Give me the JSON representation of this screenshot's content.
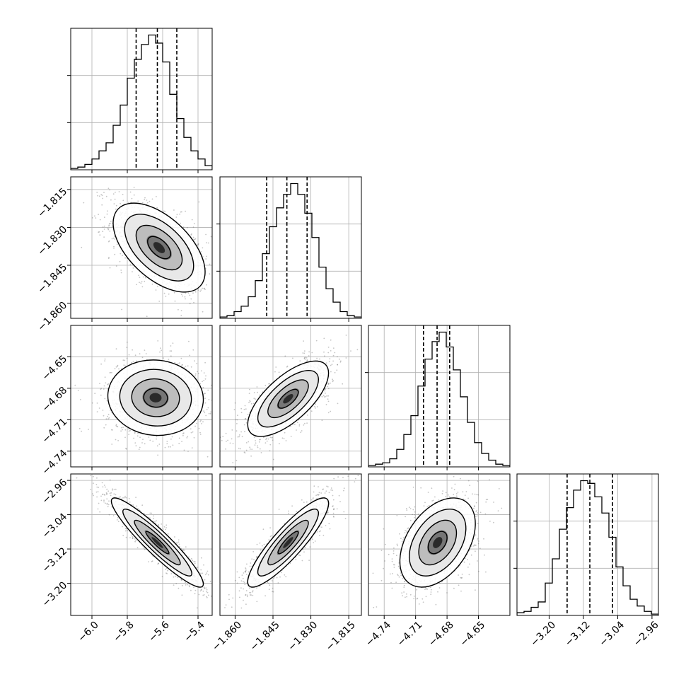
{
  "chart_data": {
    "type": "corner",
    "params": [
      {
        "range": [
          -6.12,
          -5.32
        ],
        "ticks": [
          -6.0,
          -5.8,
          -5.6,
          -5.4
        ],
        "tick_labels": [
          "−6.0",
          "−5.8",
          "−5.6",
          "−5.4"
        ],
        "quantiles": [
          -5.75,
          -5.63,
          -5.52
        ],
        "hist": [
          1,
          2,
          4,
          8,
          14,
          20,
          33,
          48,
          68,
          82,
          93,
          100,
          94,
          80,
          56,
          38,
          24,
          14,
          8,
          3
        ]
      },
      {
        "range": [
          -1.866,
          -1.81
        ],
        "ticks": [
          -1.86,
          -1.845,
          -1.83,
          -1.815
        ],
        "tick_labels": [
          "−1.860",
          "−1.845",
          "−1.830",
          "−1.815"
        ],
        "quantiles": [
          -1.8475,
          -1.8395,
          -1.8315
        ],
        "hist": [
          1,
          2,
          5,
          9,
          16,
          28,
          48,
          68,
          82,
          92,
          100,
          92,
          78,
          60,
          38,
          22,
          12,
          5,
          2,
          1
        ]
      },
      {
        "range": [
          -4.755,
          -4.62
        ],
        "ticks": [
          -4.74,
          -4.71,
          -4.68,
          -4.65
        ],
        "tick_labels": [
          "−4.74",
          "−4.71",
          "−4.68",
          "−4.65"
        ],
        "quantiles": [
          -4.7025,
          -4.6895,
          -4.6775
        ],
        "hist": [
          1,
          2,
          3,
          6,
          13,
          24,
          38,
          60,
          80,
          93,
          100,
          89,
          72,
          52,
          33,
          18,
          10,
          5,
          2,
          1
        ]
      },
      {
        "range": [
          -3.275,
          -2.945
        ],
        "ticks": [
          -3.2,
          -3.12,
          -3.04,
          -2.96
        ],
        "tick_labels": [
          "−3.20",
          "−3.12",
          "−3.04",
          "−2.96"
        ],
        "quantiles": [
          -3.158,
          -3.105,
          -3.052
        ],
        "hist": [
          2,
          3,
          6,
          10,
          24,
          42,
          64,
          80,
          93,
          100,
          98,
          88,
          76,
          58,
          36,
          22,
          12,
          7,
          3,
          1
        ]
      }
    ],
    "pairs": [
      {
        "x": 0,
        "y": 1,
        "cx": -5.62,
        "cy": -1.838,
        "sx": 0.13,
        "sy": 0.0088,
        "rho": -0.55
      },
      {
        "x": 0,
        "y": 2,
        "cx": -5.64,
        "cy": -4.689,
        "sx": 0.135,
        "sy": 0.018,
        "rho": -0.05
      },
      {
        "x": 0,
        "y": 3,
        "cx": -5.63,
        "cy": -3.105,
        "sx": 0.13,
        "sy": 0.052,
        "rho": -0.93
      },
      {
        "x": 1,
        "y": 2,
        "cx": -1.839,
        "cy": -4.69,
        "sx": 0.008,
        "sy": 0.018,
        "rho": 0.68
      },
      {
        "x": 1,
        "y": 3,
        "cx": -1.839,
        "cy": -3.105,
        "sx": 0.008,
        "sy": 0.052,
        "rho": 0.88
      },
      {
        "x": 2,
        "y": 3,
        "cx": -4.689,
        "cy": -3.105,
        "sx": 0.018,
        "sy": 0.052,
        "rho": 0.42
      }
    ],
    "grid": true,
    "colors": {
      "line": "#000000",
      "grid": "#b0b0b0",
      "points": "#5a5a5a"
    }
  }
}
